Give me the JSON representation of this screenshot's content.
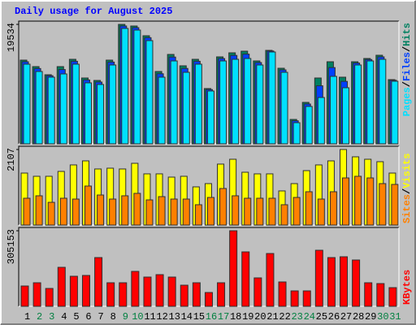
{
  "chart_data": [
    {
      "type": "bar",
      "title": "Daily usage for August 2025",
      "ylim": [
        0,
        19534
      ],
      "yticks": [
        19534
      ],
      "legend_separator": "/",
      "series": [
        {
          "name": "Pages",
          "color": "#00e0ff",
          "values": [
            13024,
            11828,
            10898,
            11429,
            13024,
            9968,
            9702,
            12891,
            18872,
            18606,
            16878,
            10898,
            13556,
            11695,
            13024,
            8639,
            13556,
            13822,
            13955,
            12891,
            15018,
            11695,
            3455,
            6113,
            7575,
            11031,
            9170,
            12891,
            13556,
            13822,
            10233
          ]
        },
        {
          "name": "Files",
          "color": "#0040ff",
          "values": [
            13420,
            12310,
            11140,
            12150,
            13500,
            10450,
            10100,
            13370,
            19270,
            19000,
            17360,
            11460,
            14190,
            12330,
            13500,
            8880,
            13950,
            14460,
            14670,
            13290,
            15180,
            12090,
            3770,
            6510,
            9490,
            12470,
            10210,
            13210,
            13790,
            14220,
            10390
          ]
        },
        {
          "name": "Hits",
          "color": "#008060",
          "values": [
            13689,
            12625,
            11296,
            12625,
            13821,
            10764,
            10365,
            13689,
            19534,
            19268,
            17675,
            11828,
            14618,
            12758,
            13821,
            9037,
            14220,
            14884,
            15150,
            13555,
            15283,
            12359,
            3987,
            6778,
            10764,
            13422,
            10897,
            13422,
            13954,
            14485,
            10498
          ]
        }
      ]
    },
    {
      "type": "bar",
      "ylim": [
        0,
        2107
      ],
      "yticks": [
        2107
      ],
      "legend_separator": "/",
      "series": [
        {
          "name": "Sites",
          "color": "#ff8000",
          "values": [
            748,
            816,
            634,
            748,
            725,
            1088,
            838,
            725,
            816,
            884,
            702,
            793,
            725,
            725,
            567,
            770,
            1020,
            816,
            748,
            748,
            748,
            567,
            770,
            929,
            725,
            929,
            1314,
            1360,
            1314,
            1156,
            1133
          ]
        },
        {
          "name": "Visits",
          "color": "#ffff00",
          "values": [
            1450,
            1360,
            1360,
            1496,
            1677,
            1790,
            1564,
            1586,
            1564,
            1722,
            1428,
            1428,
            1337,
            1360,
            1065,
            1156,
            1700,
            1835,
            1473,
            1428,
            1428,
            952,
            1156,
            1518,
            1677,
            1790,
            2107,
            1903,
            1835,
            1767,
            1450
          ]
        }
      ]
    },
    {
      "type": "bar",
      "ylim": [
        0,
        305153
      ],
      "yticks": [
        305153
      ],
      "series": [
        {
          "name": "KBytes",
          "color": "#ff0000",
          "values": [
            82025,
            95149,
            72182,
            157488,
            121397,
            124678,
            196860,
            95149,
            95149,
            141083,
            118116,
            127959,
            118116,
            85306,
            95149,
            55777,
            95149,
            305153,
            219827,
            114835,
            213265,
            98430,
            62339,
            62339,
            226389,
            196860,
            200141,
            187017,
            95149,
            91868,
            75463
          ]
        }
      ],
      "categories": [
        "1",
        "2",
        "3",
        "4",
        "5",
        "6",
        "7",
        "8",
        "9",
        "10",
        "11",
        "12",
        "13",
        "14",
        "15",
        "16",
        "17",
        "18",
        "19",
        "20",
        "21",
        "22",
        "23",
        "24",
        "25",
        "26",
        "27",
        "28",
        "29",
        "30",
        "31"
      ],
      "category_colors": [
        "#000000",
        "#008040",
        "#008040",
        "#000000",
        "#000000",
        "#000000",
        "#000000",
        "#000000",
        "#008040",
        "#008040",
        "#000000",
        "#000000",
        "#000000",
        "#000000",
        "#000000",
        "#008040",
        "#008040",
        "#000000",
        "#000000",
        "#000000",
        "#000000",
        "#000000",
        "#008040",
        "#008040",
        "#000000",
        "#000000",
        "#000000",
        "#000000",
        "#000000",
        "#008040",
        "#008040"
      ]
    }
  ]
}
